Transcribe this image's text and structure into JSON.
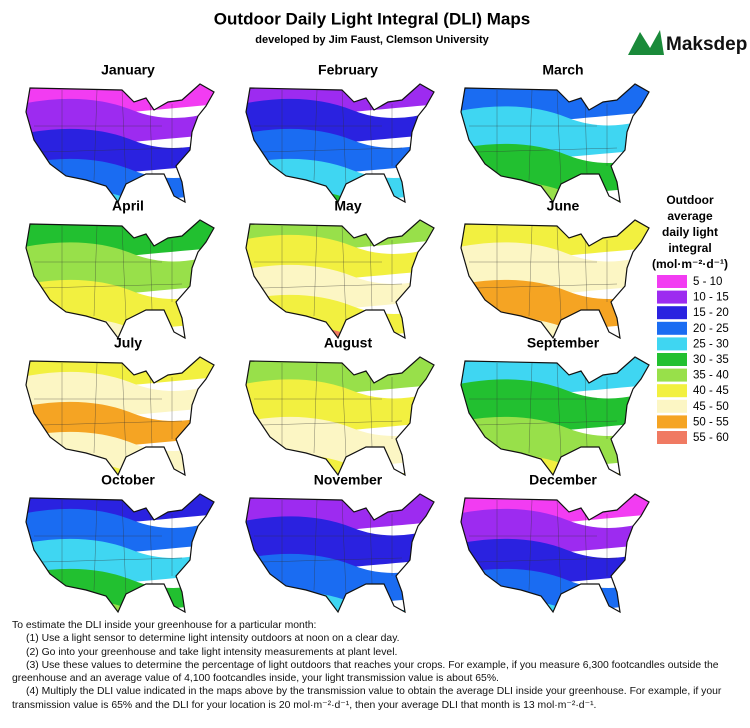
{
  "header": {
    "title": "Outdoor Daily Light Integral (DLI) Maps",
    "subtitle": "developed by Jim Faust, Clemson University",
    "logo": "Maksdep"
  },
  "maps": [
    "January",
    "February",
    "March",
    "April",
    "May",
    "June",
    "July",
    "August",
    "September",
    "October",
    "November",
    "December"
  ],
  "legend": {
    "title": [
      "Outdoor",
      "average",
      "daily light",
      "integral",
      "(mol·m⁻²·d⁻¹)"
    ],
    "items": [
      {
        "label": "5 - 10",
        "color": "#f23cf2"
      },
      {
        "label": "10 - 15",
        "color": "#9d2bf0"
      },
      {
        "label": "15 - 20",
        "color": "#2a22e0"
      },
      {
        "label": "20 - 25",
        "color": "#1a6cf2"
      },
      {
        "label": "25 - 30",
        "color": "#3fd6f2"
      },
      {
        "label": "30 - 35",
        "color": "#22c030"
      },
      {
        "label": "35 - 40",
        "color": "#98e04a"
      },
      {
        "label": "40 - 45",
        "color": "#f2f040"
      },
      {
        "label": "45 - 50",
        "color": "#fcf6c4"
      },
      {
        "label": "50 - 55",
        "color": "#f5a423"
      },
      {
        "label": "55 - 60",
        "color": "#f07a62"
      }
    ]
  },
  "notes": {
    "intro": "To estimate the DLI inside your greenhouse for a particular month:",
    "steps": [
      "(1) Use a light sensor to determine light intensity outdoors at noon on a clear day.",
      "(2) Go into your greenhouse and take light intensity measurements at plant level.",
      "(3) Use these values to determine the percentage of light outdoors that reaches your crops. For example, if you measure 6,300 footcandles outside the greenhouse and an average value of 4,100 footcandles inside, your light transmission value is about 65%.",
      "(4) Multiply the DLI value indicated in the maps above by the transmission value to obtain the average DLI inside your greenhouse.  For example, if your transmission value is 65% and the DLI for your location is 20 mol·m⁻²·d⁻¹, then your average DLI that month is 13 mol·m⁻²·d⁻¹."
    ]
  }
}
